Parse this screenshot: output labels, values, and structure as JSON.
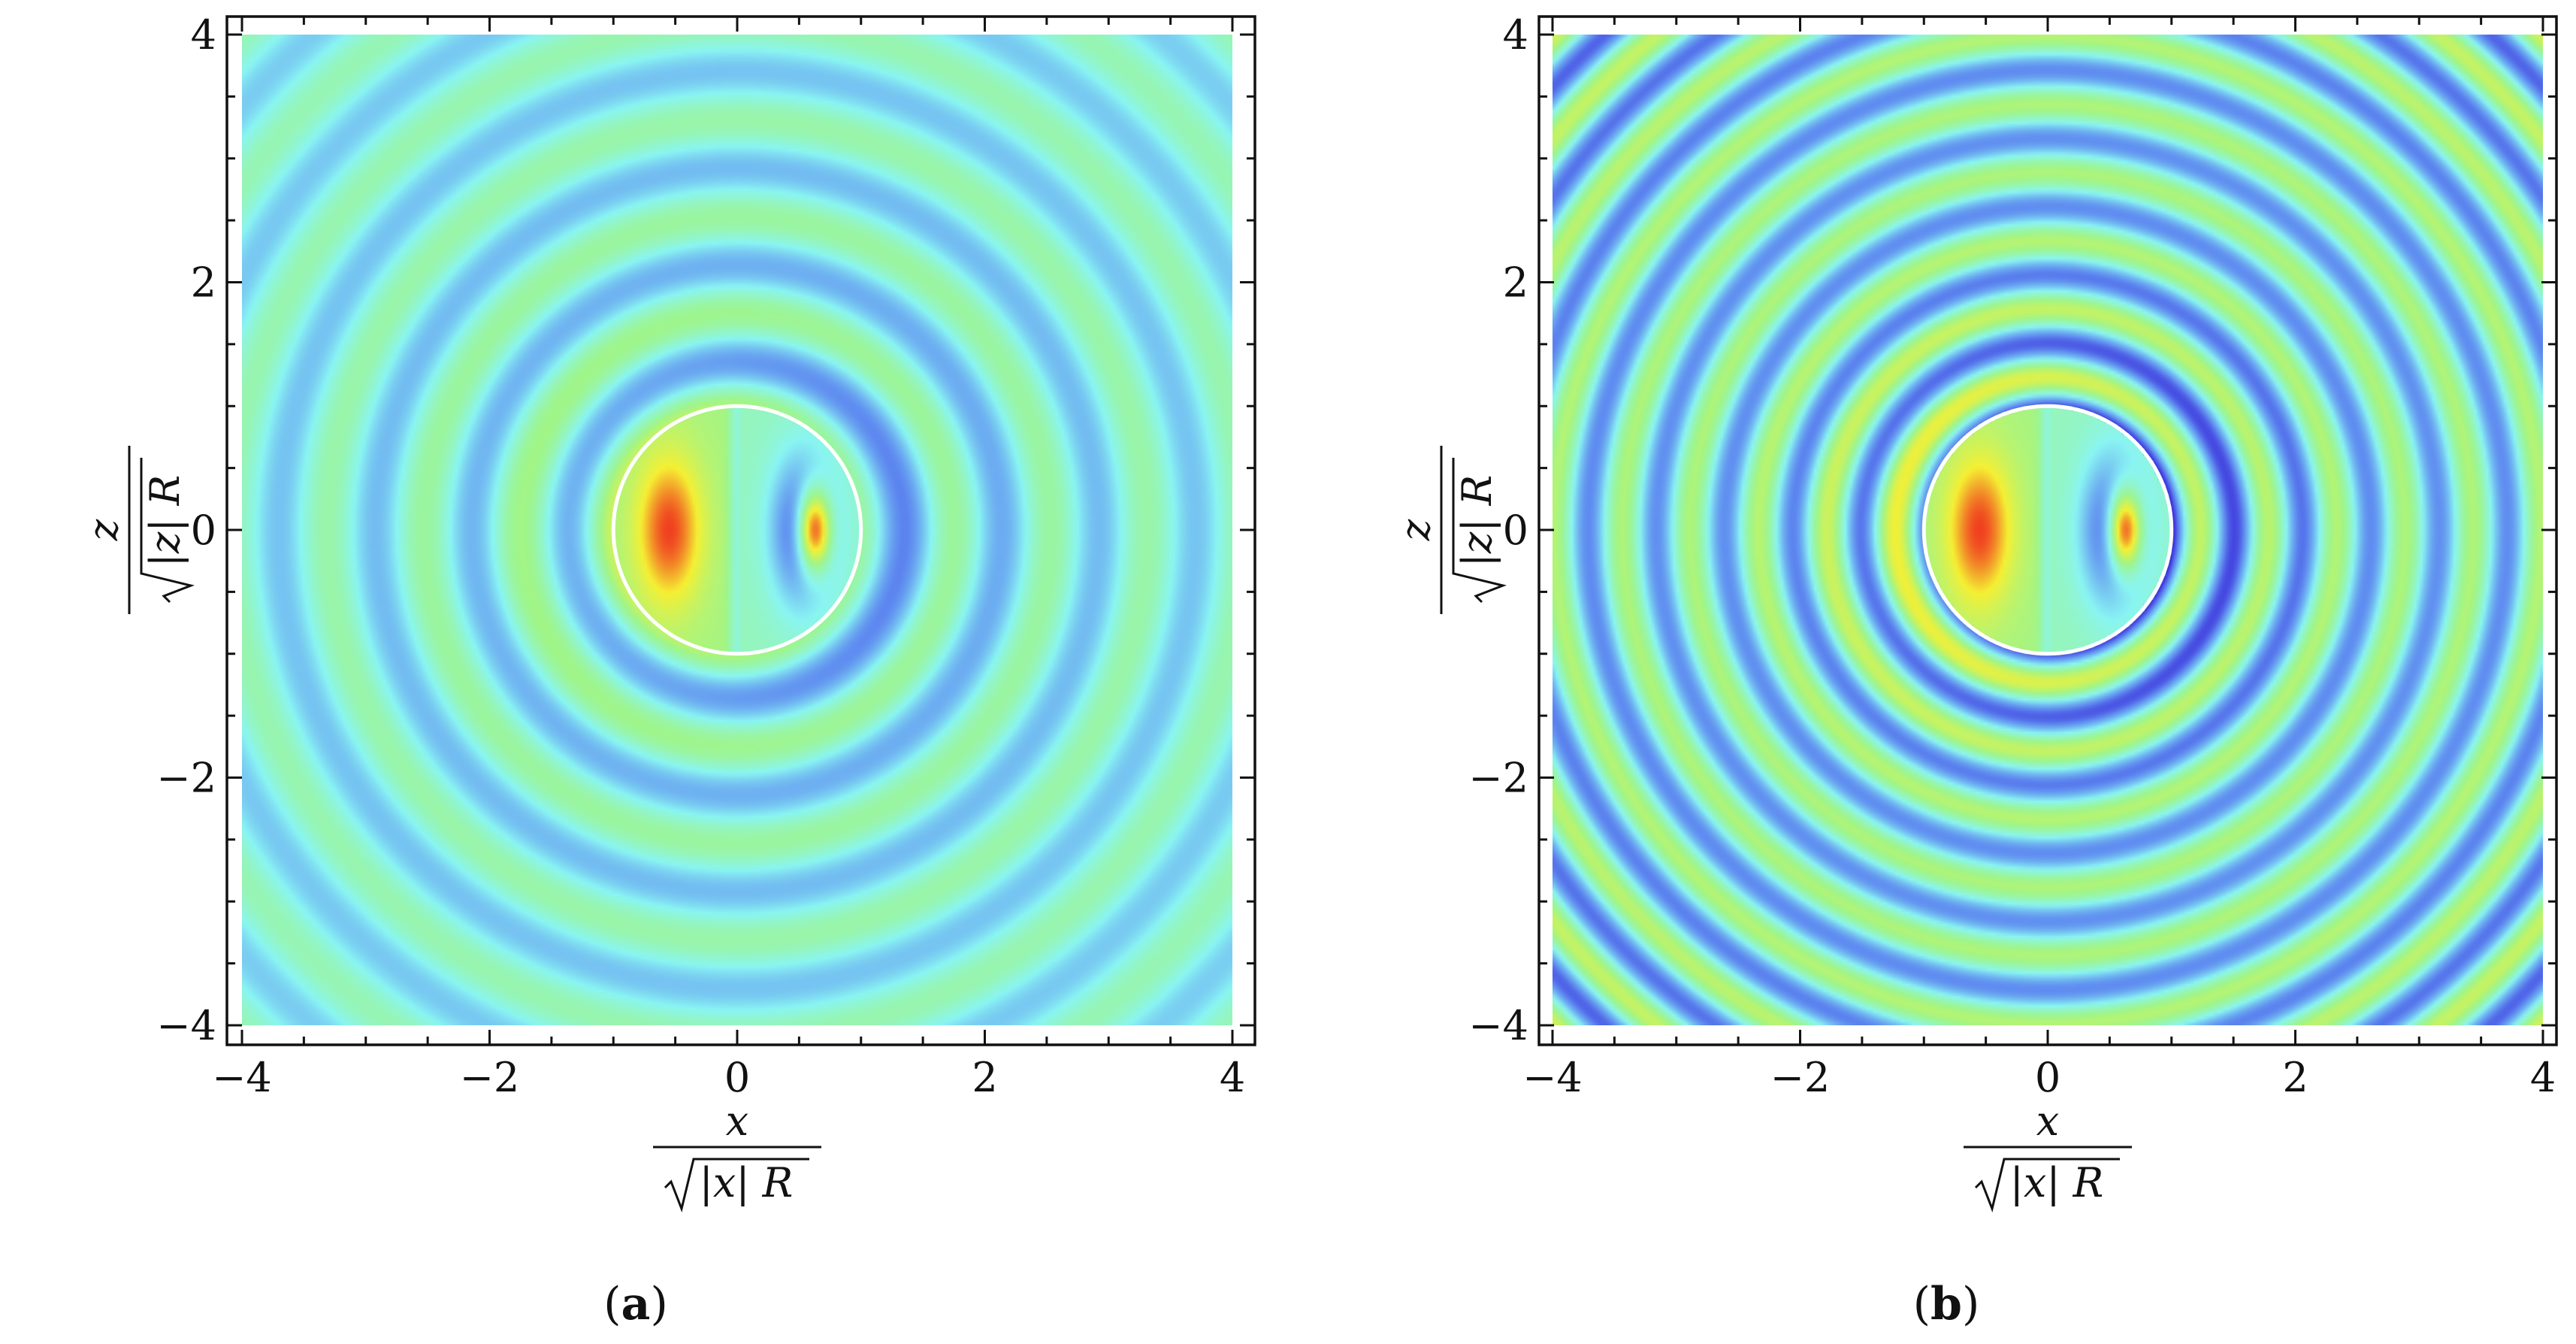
{
  "chart_data": [
    {
      "type": "heatmap",
      "panel_label": "a",
      "xlim": [
        -4,
        4
      ],
      "ylim": [
        -4,
        4
      ],
      "x_ticks": [
        -4,
        -2,
        0,
        2,
        4
      ],
      "y_ticks": [
        -4,
        -2,
        0,
        2,
        4
      ],
      "x_tick_labels": [
        "−4",
        "−2",
        "0",
        "2",
        "4"
      ],
      "y_tick_labels": [
        "−4",
        "−2",
        "0",
        "2",
        "4"
      ],
      "xlabel": {
        "numerator": "x",
        "radicand_left": "|",
        "radicand_var": "x",
        "radicand_right": "| R"
      },
      "ylabel": {
        "numerator": "z",
        "radicand_left": "|",
        "radicand_var": "z",
        "radicand_right": "| R"
      },
      "circle_radius": 1,
      "field": {
        "ring_period": 0.78,
        "ring_strength": 0.22,
        "edge_growth": 0.0,
        "background_color": "#8af5f2"
      },
      "colormap": [
        "#2a00d0",
        "#5f8cf0",
        "#8af5f2",
        "#9ff58a",
        "#f5f033",
        "#f04020"
      ]
    },
    {
      "type": "heatmap",
      "panel_label": "b",
      "xlim": [
        -4,
        4
      ],
      "ylim": [
        -4,
        4
      ],
      "x_ticks": [
        -4,
        -2,
        0,
        2,
        4
      ],
      "y_ticks": [
        -4,
        -2,
        0,
        2,
        4
      ],
      "x_tick_labels": [
        "−4",
        "−2",
        "0",
        "2",
        "4"
      ],
      "y_tick_labels": [
        "−4",
        "−2",
        "0",
        "2",
        "4"
      ],
      "xlabel": {
        "numerator": "x",
        "radicand_left": "|",
        "radicand_var": "x",
        "radicand_right": "| R"
      },
      "ylabel": {
        "numerator": "z",
        "radicand_left": "|",
        "radicand_var": "z",
        "radicand_right": "| R"
      },
      "circle_radius": 1,
      "field": {
        "ring_period": 0.55,
        "ring_strength": 0.35,
        "edge_growth": 1.0,
        "background_color": "#a0f0a8"
      },
      "colormap": [
        "#2a00d0",
        "#5f8cf0",
        "#8af5f2",
        "#9ff58a",
        "#f5f033",
        "#f04020"
      ]
    }
  ]
}
